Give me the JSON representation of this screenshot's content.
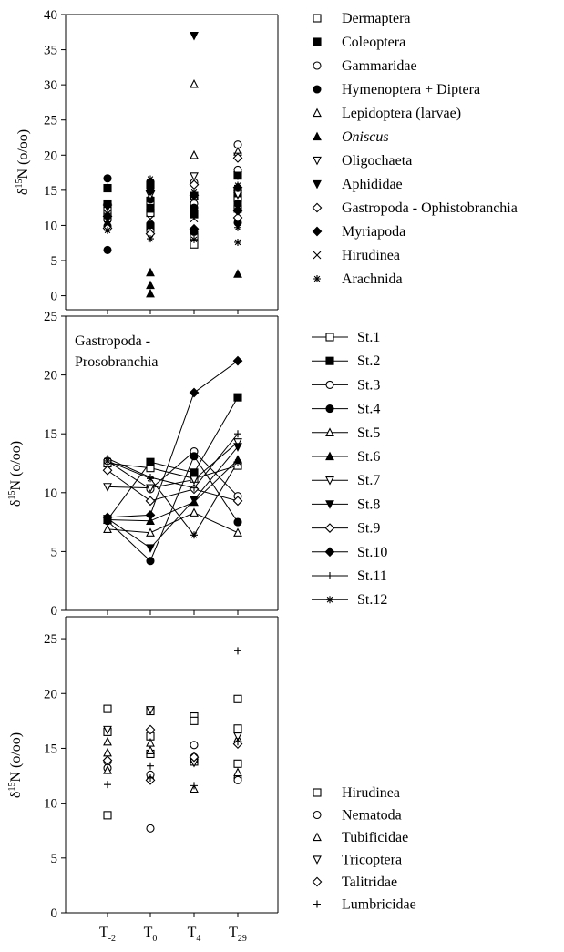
{
  "chart_data": [
    {
      "type": "scatter",
      "ylabel": "δ15N (o/oo)",
      "ylim": [
        -2,
        40
      ],
      "yticks": [
        0,
        5,
        10,
        15,
        20,
        25,
        30,
        35,
        40
      ],
      "categories": [
        "T-2",
        "T0",
        "T4",
        "T29"
      ],
      "grid": false,
      "legend_position": "right",
      "series": [
        {
          "name": "Dermaptera",
          "marker": "square-open",
          "points": [
            [
              1,
              12.1
            ],
            [
              1,
              11.2
            ],
            [
              2,
              11.8
            ],
            [
              2,
              13.5
            ],
            [
              3,
              7.3
            ],
            [
              3,
              8.4
            ],
            [
              4,
              12.4
            ],
            [
              4,
              13.8
            ]
          ]
        },
        {
          "name": "Coleoptera",
          "marker": "square-filled",
          "points": [
            [
              1,
              15.3
            ],
            [
              1,
              13.1
            ],
            [
              2,
              15.7
            ],
            [
              2,
              12.4
            ],
            [
              2,
              9.8
            ],
            [
              3,
              14.2
            ],
            [
              3,
              11.6
            ],
            [
              4,
              17.1
            ],
            [
              4,
              14.6
            ]
          ]
        },
        {
          "name": "Gammaridae",
          "marker": "circle-open",
          "points": [
            [
              1,
              10.8
            ],
            [
              2,
              9.2
            ],
            [
              3,
              13.1
            ],
            [
              3,
              16.1
            ],
            [
              4,
              21.5
            ],
            [
              4,
              17.9
            ]
          ]
        },
        {
          "name": "Hymenoptera + Diptera",
          "marker": "circle-filled",
          "points": [
            [
              1,
              16.7
            ],
            [
              1,
              6.5
            ],
            [
              1,
              9.9
            ],
            [
              2,
              16.2
            ],
            [
              2,
              13.7
            ],
            [
              2,
              10.1
            ],
            [
              3,
              9.1
            ],
            [
              3,
              12.5
            ],
            [
              4,
              13.1
            ],
            [
              4,
              10.4
            ]
          ]
        },
        {
          "name": "Lepidoptera (larvae)",
          "marker": "triangle-open",
          "points": [
            [
              3,
              30.1
            ],
            [
              3,
              20.0
            ],
            [
              3,
              14.2
            ],
            [
              4,
              20.5
            ],
            [
              4,
              15.2
            ]
          ]
        },
        {
          "name": "Oniscus",
          "marker": "triangle-filled",
          "points": [
            [
              2,
              3.3
            ],
            [
              2,
              1.5
            ],
            [
              2,
              0.3
            ],
            [
              4,
              3.1
            ]
          ]
        },
        {
          "name": "Oligochaeta",
          "marker": "triangle-down-open",
          "points": [
            [
              1,
              12.6
            ],
            [
              2,
              14.3
            ],
            [
              3,
              17.0
            ],
            [
              4,
              19.8
            ],
            [
              4,
              14.4
            ]
          ]
        },
        {
          "name": "Aphididae",
          "marker": "triangle-down-filled",
          "points": [
            [
              3,
              37.0
            ],
            [
              4,
              17.1
            ]
          ]
        },
        {
          "name": "Gastropoda - Ophistobranchia",
          "marker": "diamond-open",
          "points": [
            [
              1,
              9.6
            ],
            [
              2,
              8.8
            ],
            [
              3,
              15.8
            ],
            [
              4,
              19.6
            ],
            [
              4,
              11.1
            ]
          ]
        },
        {
          "name": "Myriapoda",
          "marker": "diamond-filled",
          "points": [
            [
              1,
              12.9
            ],
            [
              1,
              11.3
            ],
            [
              2,
              14.9
            ],
            [
              3,
              14.3
            ],
            [
              3,
              9.5
            ],
            [
              4,
              15.4
            ],
            [
              4,
              12.1
            ]
          ]
        },
        {
          "name": "Hirudinea",
          "marker": "x",
          "points": [
            [
              1,
              11.7
            ],
            [
              2,
              10.9
            ],
            [
              3,
              11.0
            ],
            [
              4,
              12.8
            ]
          ]
        },
        {
          "name": "Arachnida",
          "marker": "asterisk",
          "points": [
            [
              1,
              15.4
            ],
            [
              1,
              10.5
            ],
            [
              1,
              9.3
            ],
            [
              2,
              16.6
            ],
            [
              2,
              9.9
            ],
            [
              2,
              8.1
            ],
            [
              3,
              14.7
            ],
            [
              3,
              8.0
            ],
            [
              4,
              15.7
            ],
            [
              4,
              7.6
            ],
            [
              4,
              9.7
            ]
          ]
        }
      ]
    },
    {
      "type": "line",
      "annotation": [
        "Gastropoda -",
        "Prosobranchia"
      ],
      "ylabel": "δ15N (o/oo)",
      "ylim": [
        0,
        25
      ],
      "yticks": [
        0,
        5,
        10,
        15,
        20,
        25
      ],
      "categories": [
        "T-2",
        "T0",
        "T4",
        "T29"
      ],
      "grid": false,
      "legend_position": "right",
      "series": [
        {
          "name": "St.1",
          "marker": "square-open",
          "values": [
            12.5,
            12.1,
            11.2,
            12.3
          ]
        },
        {
          "name": "St.2",
          "marker": "square-filled",
          "values": [
            7.7,
            12.6,
            11.7,
            18.1
          ]
        },
        {
          "name": "St.3",
          "marker": "circle-open",
          "values": [
            12.7,
            10.3,
            13.5,
            9.7
          ]
        },
        {
          "name": "St.4",
          "marker": "circle-filled",
          "values": [
            7.6,
            4.2,
            13.1,
            7.5
          ]
        },
        {
          "name": "St.5",
          "marker": "triangle-open",
          "values": [
            6.9,
            6.6,
            8.3,
            6.6
          ]
        },
        {
          "name": "St.6",
          "marker": "triangle-filled",
          "values": [
            7.7,
            7.6,
            9.2,
            12.8
          ]
        },
        {
          "name": "St.7",
          "marker": "triangle-down-open",
          "values": [
            10.5,
            10.4,
            11.1,
            14.3
          ]
        },
        {
          "name": "St.8",
          "marker": "triangle-down-filled",
          "values": [
            7.8,
            5.3,
            9.4,
            13.9
          ]
        },
        {
          "name": "St.9",
          "marker": "diamond-open",
          "values": [
            11.9,
            9.3,
            10.3,
            9.3
          ]
        },
        {
          "name": "St.10",
          "marker": "diamond-filled",
          "values": [
            7.9,
            8.1,
            18.5,
            21.2
          ]
        },
        {
          "name": "St.11",
          "marker": "plus",
          "values": [
            12.9,
            11.3,
            10.4,
            15.0
          ]
        },
        {
          "name": "St.12",
          "marker": "asterisk",
          "values": [
            12.7,
            11.2,
            6.4,
            12.6
          ]
        }
      ]
    },
    {
      "type": "scatter",
      "ylabel": "δ15N (o/oo)",
      "ylim": [
        0,
        27
      ],
      "yticks": [
        0,
        5,
        10,
        15,
        20,
        25
      ],
      "categories": [
        "T-2",
        "T0",
        "T4",
        "T29"
      ],
      "grid": false,
      "legend_position": "right",
      "series": [
        {
          "name": "Hirudinea",
          "marker": "square-open",
          "points": [
            [
              1,
              18.6
            ],
            [
              1,
              8.9
            ],
            [
              1,
              16.5
            ],
            [
              2,
              18.4
            ],
            [
              2,
              14.5
            ],
            [
              2,
              16.1
            ],
            [
              3,
              17.9
            ],
            [
              3,
              17.5
            ],
            [
              3,
              13.8
            ],
            [
              4,
              19.5
            ],
            [
              4,
              16.8
            ],
            [
              4,
              13.6
            ]
          ]
        },
        {
          "name": "Nematoda",
          "marker": "circle-open",
          "points": [
            [
              1,
              13.8
            ],
            [
              1,
              13.2
            ],
            [
              2,
              7.7
            ],
            [
              2,
              12.6
            ],
            [
              3,
              15.3
            ],
            [
              3,
              14.2
            ],
            [
              4,
              12.3
            ],
            [
              4,
              12.1
            ]
          ]
        },
        {
          "name": "Tubificidae",
          "marker": "triangle-open",
          "points": [
            [
              1,
              15.6
            ],
            [
              1,
              14.6
            ],
            [
              1,
              13.0
            ],
            [
              2,
              15.5
            ],
            [
              2,
              14.8
            ],
            [
              3,
              14.0
            ],
            [
              3,
              11.3
            ],
            [
              4,
              15.9
            ],
            [
              4,
              12.8
            ]
          ]
        },
        {
          "name": "Tricoptera",
          "marker": "triangle-down-open",
          "points": [
            [
              1,
              16.7
            ],
            [
              2,
              18.5
            ],
            [
              3,
              13.7
            ],
            [
              4,
              16.1
            ]
          ]
        },
        {
          "name": "Talitridae",
          "marker": "diamond-open",
          "points": [
            [
              1,
              13.9
            ],
            [
              2,
              16.7
            ],
            [
              2,
              12.1
            ],
            [
              3,
              14.2
            ],
            [
              4,
              15.4
            ]
          ]
        },
        {
          "name": "Lumbricidae",
          "marker": "plus",
          "points": [
            [
              1,
              11.7
            ],
            [
              2,
              13.4
            ],
            [
              2,
              12.3
            ],
            [
              3,
              11.6
            ],
            [
              4,
              23.9
            ],
            [
              4,
              15.6
            ]
          ]
        }
      ]
    }
  ]
}
